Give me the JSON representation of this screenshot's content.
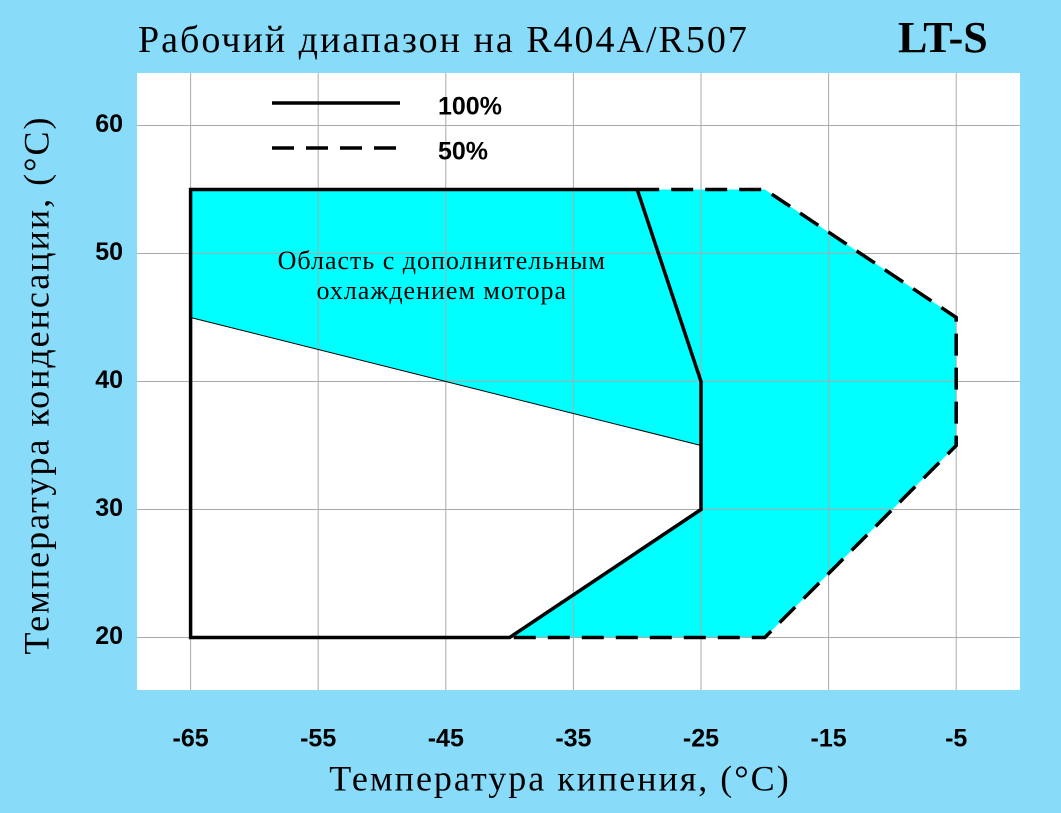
{
  "chart_data": {
    "type": "envelope",
    "title": "Рабочий диапазон на R404A/R507",
    "subtitle": "LT-S",
    "x_label": "Температура кипения, (°C)",
    "y_label": "Температура конденсации, (°C)",
    "xlim": [
      -69.2,
      0
    ],
    "xticks": [
      -65,
      -55,
      -45,
      -35,
      -25,
      -15,
      -5
    ],
    "ylim": [
      15.9,
      64.1
    ],
    "yticks": [
      20,
      30,
      40,
      50,
      60
    ],
    "grid": true,
    "legend": "top-left",
    "series": [
      {
        "name": "100%",
        "color": "#000000",
        "style": "solid",
        "closed": true,
        "x": [
          -65,
          -65,
          -30,
          -25,
          -25,
          -40
        ],
        "y": [
          20,
          55,
          55,
          40,
          30,
          20
        ]
      },
      {
        "name": "50%",
        "color": "#000000",
        "style": "dashed",
        "closed": false,
        "x": [
          -30,
          -20,
          -5,
          -5,
          -20,
          -40
        ],
        "y": [
          55,
          55,
          45,
          35,
          20,
          20
        ]
      }
    ],
    "region": {
      "color": "#00ffff",
      "x": [
        -65,
        -65,
        -25,
        -25,
        -40,
        -20,
        -5,
        -5,
        -20
      ],
      "y": [
        55,
        45,
        35,
        30,
        20,
        20,
        35,
        45,
        55
      ],
      "label": [
        "Область с дополнительным",
        "охлаждением мотора"
      ]
    }
  }
}
